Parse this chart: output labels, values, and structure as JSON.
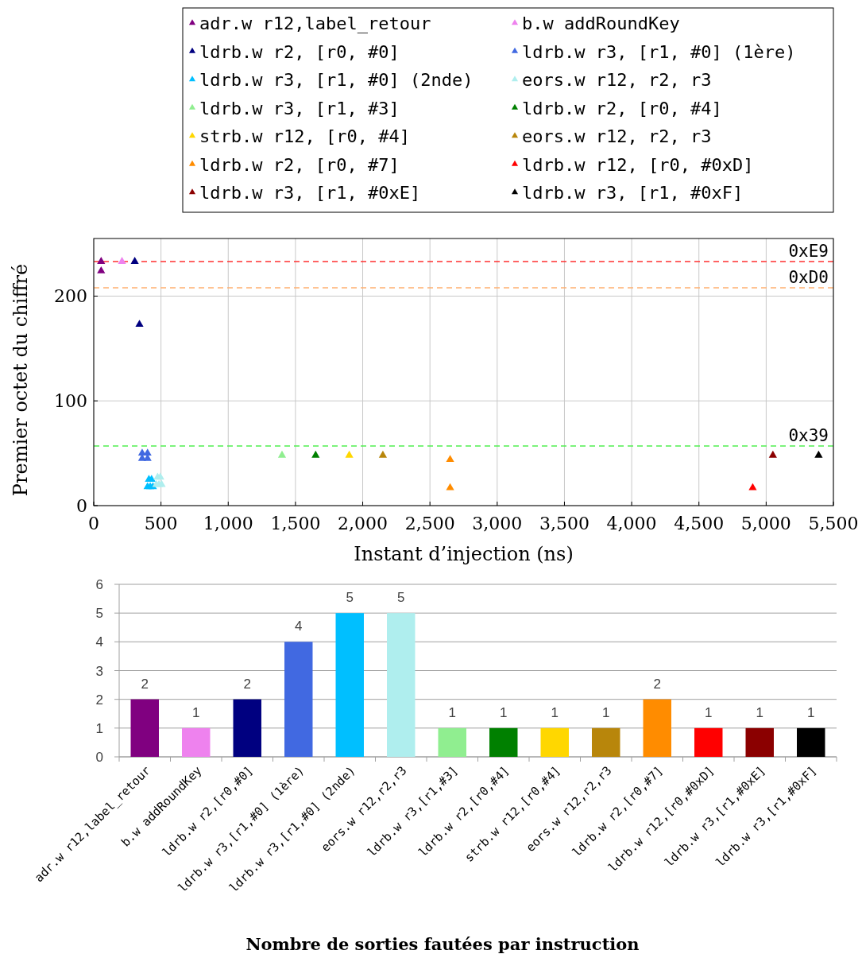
{
  "chart_data": [
    {
      "type": "scatter",
      "xlabel": "Instant d’injection (ns)",
      "ylabel": "Premier octet du chiffré",
      "xlim": [
        0,
        5500
      ],
      "ylim": [
        0,
        255
      ],
      "xticks": [
        0,
        500,
        {
          "value": 1000,
          "label": "1,000"
        },
        {
          "value": 1500,
          "label": "1,500"
        },
        {
          "value": 2000,
          "label": "2,000"
        },
        {
          "value": 2500,
          "label": "2,500"
        },
        {
          "value": 3000,
          "label": "3,000"
        },
        {
          "value": 3500,
          "label": "3,500"
        },
        {
          "value": 4000,
          "label": "4,000"
        },
        {
          "value": 4500,
          "label": "4,500"
        },
        {
          "value": 5000,
          "label": "5,000"
        },
        {
          "value": 5500,
          "label": "5,500"
        }
      ],
      "yticks": [
        0,
        100,
        200
      ],
      "grid": true,
      "legend": "top",
      "marker": "triangle",
      "ref_lines": [
        {
          "axis": "y",
          "value": 233,
          "label": "0xE9",
          "color": "#ff3030",
          "line_style": "dashed"
        },
        {
          "axis": "y",
          "value": 208,
          "label": "0xD0",
          "color": "#ffb070",
          "line_style": "dashed"
        },
        {
          "axis": "y",
          "value": 57,
          "label": "0x39",
          "color": "#50f050",
          "line_style": "dashed"
        }
      ],
      "series": [
        {
          "name": "adr.w r12,label_retour",
          "color": "#800080",
          "x": [
            55,
            55
          ],
          "values": [
            233,
            224
          ]
        },
        {
          "name": "b.w addRoundKey",
          "color": "#ee82ee",
          "x": [
            210
          ],
          "values": [
            233
          ]
        },
        {
          "name": "ldrb.w r2, [r0, #0]",
          "color": "#000080",
          "x": [
            305,
            340
          ],
          "values": [
            233,
            173
          ]
        },
        {
          "name": "ldrb.w r3, [r1, #0] (1ère)",
          "color": "#4169e1",
          "x": [
            360,
            400,
            360,
            400
          ],
          "values": [
            45,
            45,
            50,
            50
          ]
        },
        {
          "name": "ldrb.w r3, [r1, #0] (2nde)",
          "color": "#00bfff",
          "x": [
            400,
            420,
            440,
            410,
            430
          ],
          "values": [
            18,
            18,
            18,
            25,
            25
          ]
        },
        {
          "name": "eors.w r12, r2, r3",
          "color": "#afeeee",
          "x": [
            465,
            485,
            505,
            475,
            495
          ],
          "values": [
            20,
            20,
            20,
            27,
            27
          ]
        },
        {
          "name": "ldrb.w r3, [r1, #3]",
          "color": "#90ee90",
          "x": [
            1400
          ],
          "values": [
            48
          ]
        },
        {
          "name": "ldrb.w r2, [r0, #4]",
          "color": "#008000",
          "x": [
            1650
          ],
          "values": [
            48
          ]
        },
        {
          "name": "strb.w r12, [r0, #4]",
          "color": "#ffd700",
          "x": [
            1900
          ],
          "values": [
            48
          ]
        },
        {
          "name": "eors.w r12, r2, r3",
          "color": "#b8860b",
          "x": [
            2150
          ],
          "values": [
            48
          ]
        },
        {
          "name": "ldrb.w r2, [r0, #7]",
          "color": "#ff8c00",
          "x": [
            2650,
            2650
          ],
          "values": [
            44,
            17
          ]
        },
        {
          "name": "ldrb.w r12, [r0, #0xD]",
          "color": "#ff0000",
          "x": [
            4900
          ],
          "values": [
            17
          ]
        },
        {
          "name": "ldrb.w r3, [r1, #0xE]",
          "color": "#8b0000",
          "x": [
            5050
          ],
          "values": [
            48
          ]
        },
        {
          "name": "ldrb.w r3, [r1, #0xF]",
          "color": "#000000",
          "x": [
            5390
          ],
          "values": [
            48
          ]
        }
      ]
    },
    {
      "type": "bar",
      "xlabel": "Nombre de sorties fautées par instruction",
      "ylim": [
        0,
        6
      ],
      "yticks": [
        0,
        1,
        2,
        3,
        4,
        5,
        6
      ],
      "grid": "y",
      "data_labels": true,
      "categories": [
        "adr.w r12,label_retour",
        "b.w addRoundKey",
        "ldrb.w r2,[r0,#0]",
        "ldrb.w r3,[r1,#0] (1ère)",
        "ldrb.w r3,[r1,#0] (2nde)",
        "eors.w r12,r2,r3",
        "ldrb.w r3,[r1,#3]",
        "ldrb.w r2,[r0,#4]",
        "strb.w r12,[r0,#4]",
        "eors.w r12,r2,r3",
        "ldrb.w r2,[r0,#7]",
        "ldrb.w r12,[r0,#0xD]",
        "ldrb.w r3,[r1,#0xE]",
        "ldrb.w r3,[r1,#0xF]"
      ],
      "values": [
        2,
        1,
        2,
        4,
        5,
        5,
        1,
        1,
        1,
        1,
        2,
        1,
        1,
        1
      ],
      "colors": [
        "#800080",
        "#ee82ee",
        "#000080",
        "#4169e1",
        "#00bfff",
        "#afeeee",
        "#90ee90",
        "#008000",
        "#ffd700",
        "#b8860b",
        "#ff8c00",
        "#ff0000",
        "#8b0000",
        "#000000"
      ]
    }
  ]
}
